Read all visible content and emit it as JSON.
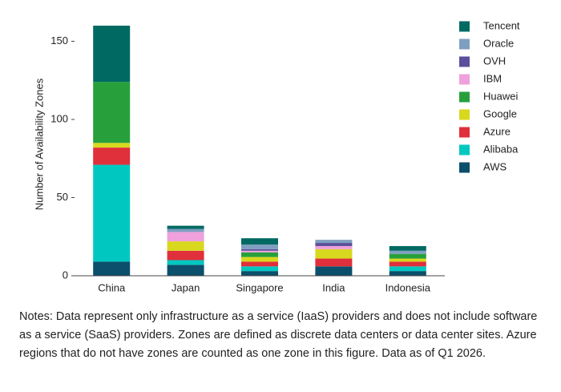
{
  "chart_data": {
    "type": "stacked-bar",
    "y_label": "Number of Availability Zones",
    "categories": [
      "China",
      "Japan",
      "Singapore",
      "India",
      "Indonesia"
    ],
    "series": [
      {
        "name": "AWS",
        "color": "#0b4f6c",
        "values": [
          9,
          7,
          3,
          6,
          3
        ]
      },
      {
        "name": "Alibaba",
        "color": "#00c8c0",
        "values": [
          62,
          3,
          3,
          0,
          3
        ]
      },
      {
        "name": "Azure",
        "color": "#e0303b",
        "values": [
          11,
          6,
          3,
          5,
          3
        ]
      },
      {
        "name": "Google",
        "color": "#d8d81e",
        "values": [
          3,
          6,
          3,
          6,
          2
        ]
      },
      {
        "name": "Huawei",
        "color": "#27a03c",
        "values": [
          39,
          0,
          3,
          0,
          3
        ]
      },
      {
        "name": "IBM",
        "color": "#f0a0dc",
        "values": [
          0,
          6,
          1,
          2,
          0
        ]
      },
      {
        "name": "OVH",
        "color": "#5a4f9a",
        "values": [
          0,
          0,
          1,
          2,
          0
        ]
      },
      {
        "name": "Oracle",
        "color": "#7f9fc0",
        "values": [
          0,
          2,
          3,
          2,
          2
        ]
      },
      {
        "name": "Tencent",
        "color": "#006a62",
        "values": [
          36,
          2,
          4,
          0,
          3
        ]
      }
    ],
    "ylim": [
      0,
      160
    ],
    "yticks": [
      0,
      50,
      100,
      150
    ],
    "legend": "right"
  },
  "notes": "Notes: Data represent only infrastructure as a service (IaaS) providers and does not include software as a service (SaaS) providers. Zones are defined as discrete data centers or data center sites. Azure regions that do not have zones are counted as one zone in this figure. Data as of Q1 2026."
}
